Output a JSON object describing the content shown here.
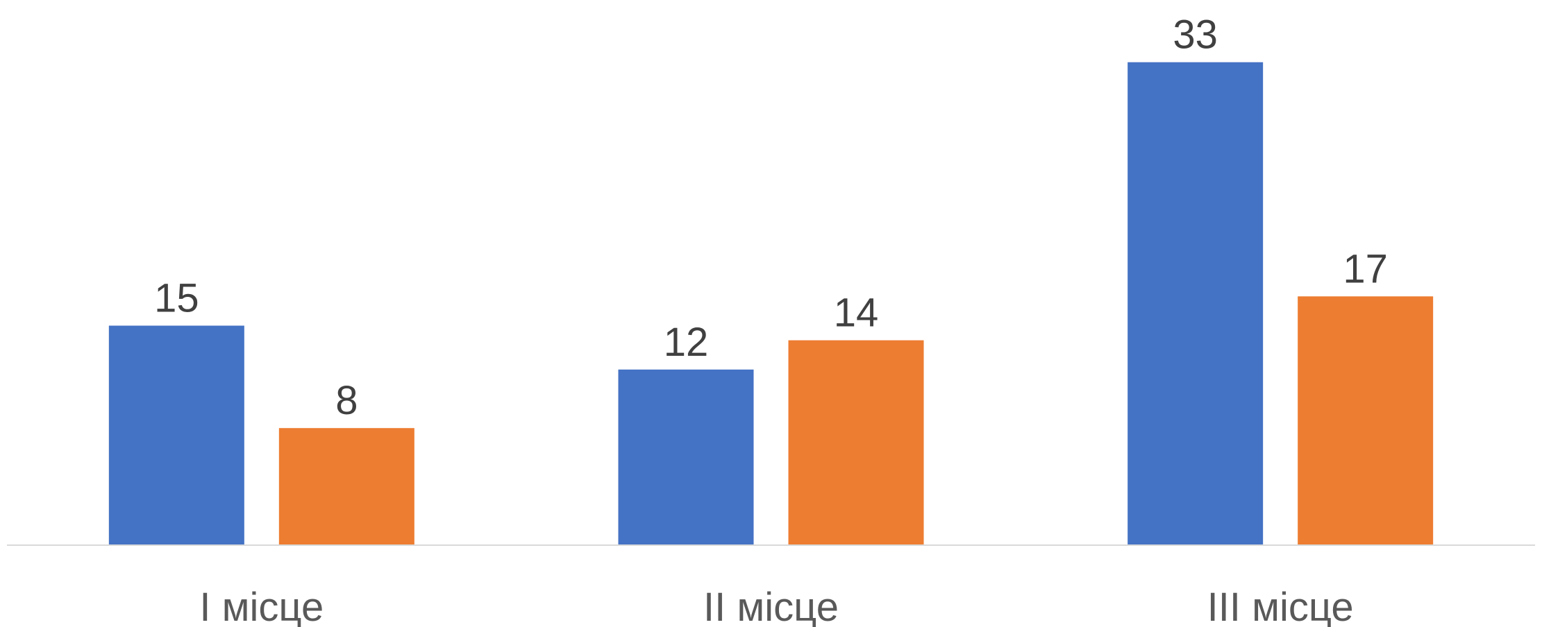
{
  "chart_data": {
    "type": "bar",
    "categories": [
      "I місце",
      "II місце",
      "III місце"
    ],
    "series": [
      {
        "values": [
          15,
          12,
          33
        ],
        "color": "#4472C4"
      },
      {
        "values": [
          8,
          14,
          17
        ],
        "color": "#ED7D31"
      }
    ],
    "data_labels": true,
    "legend": "none",
    "grid": false,
    "ylim": [
      0,
      37
    ]
  }
}
